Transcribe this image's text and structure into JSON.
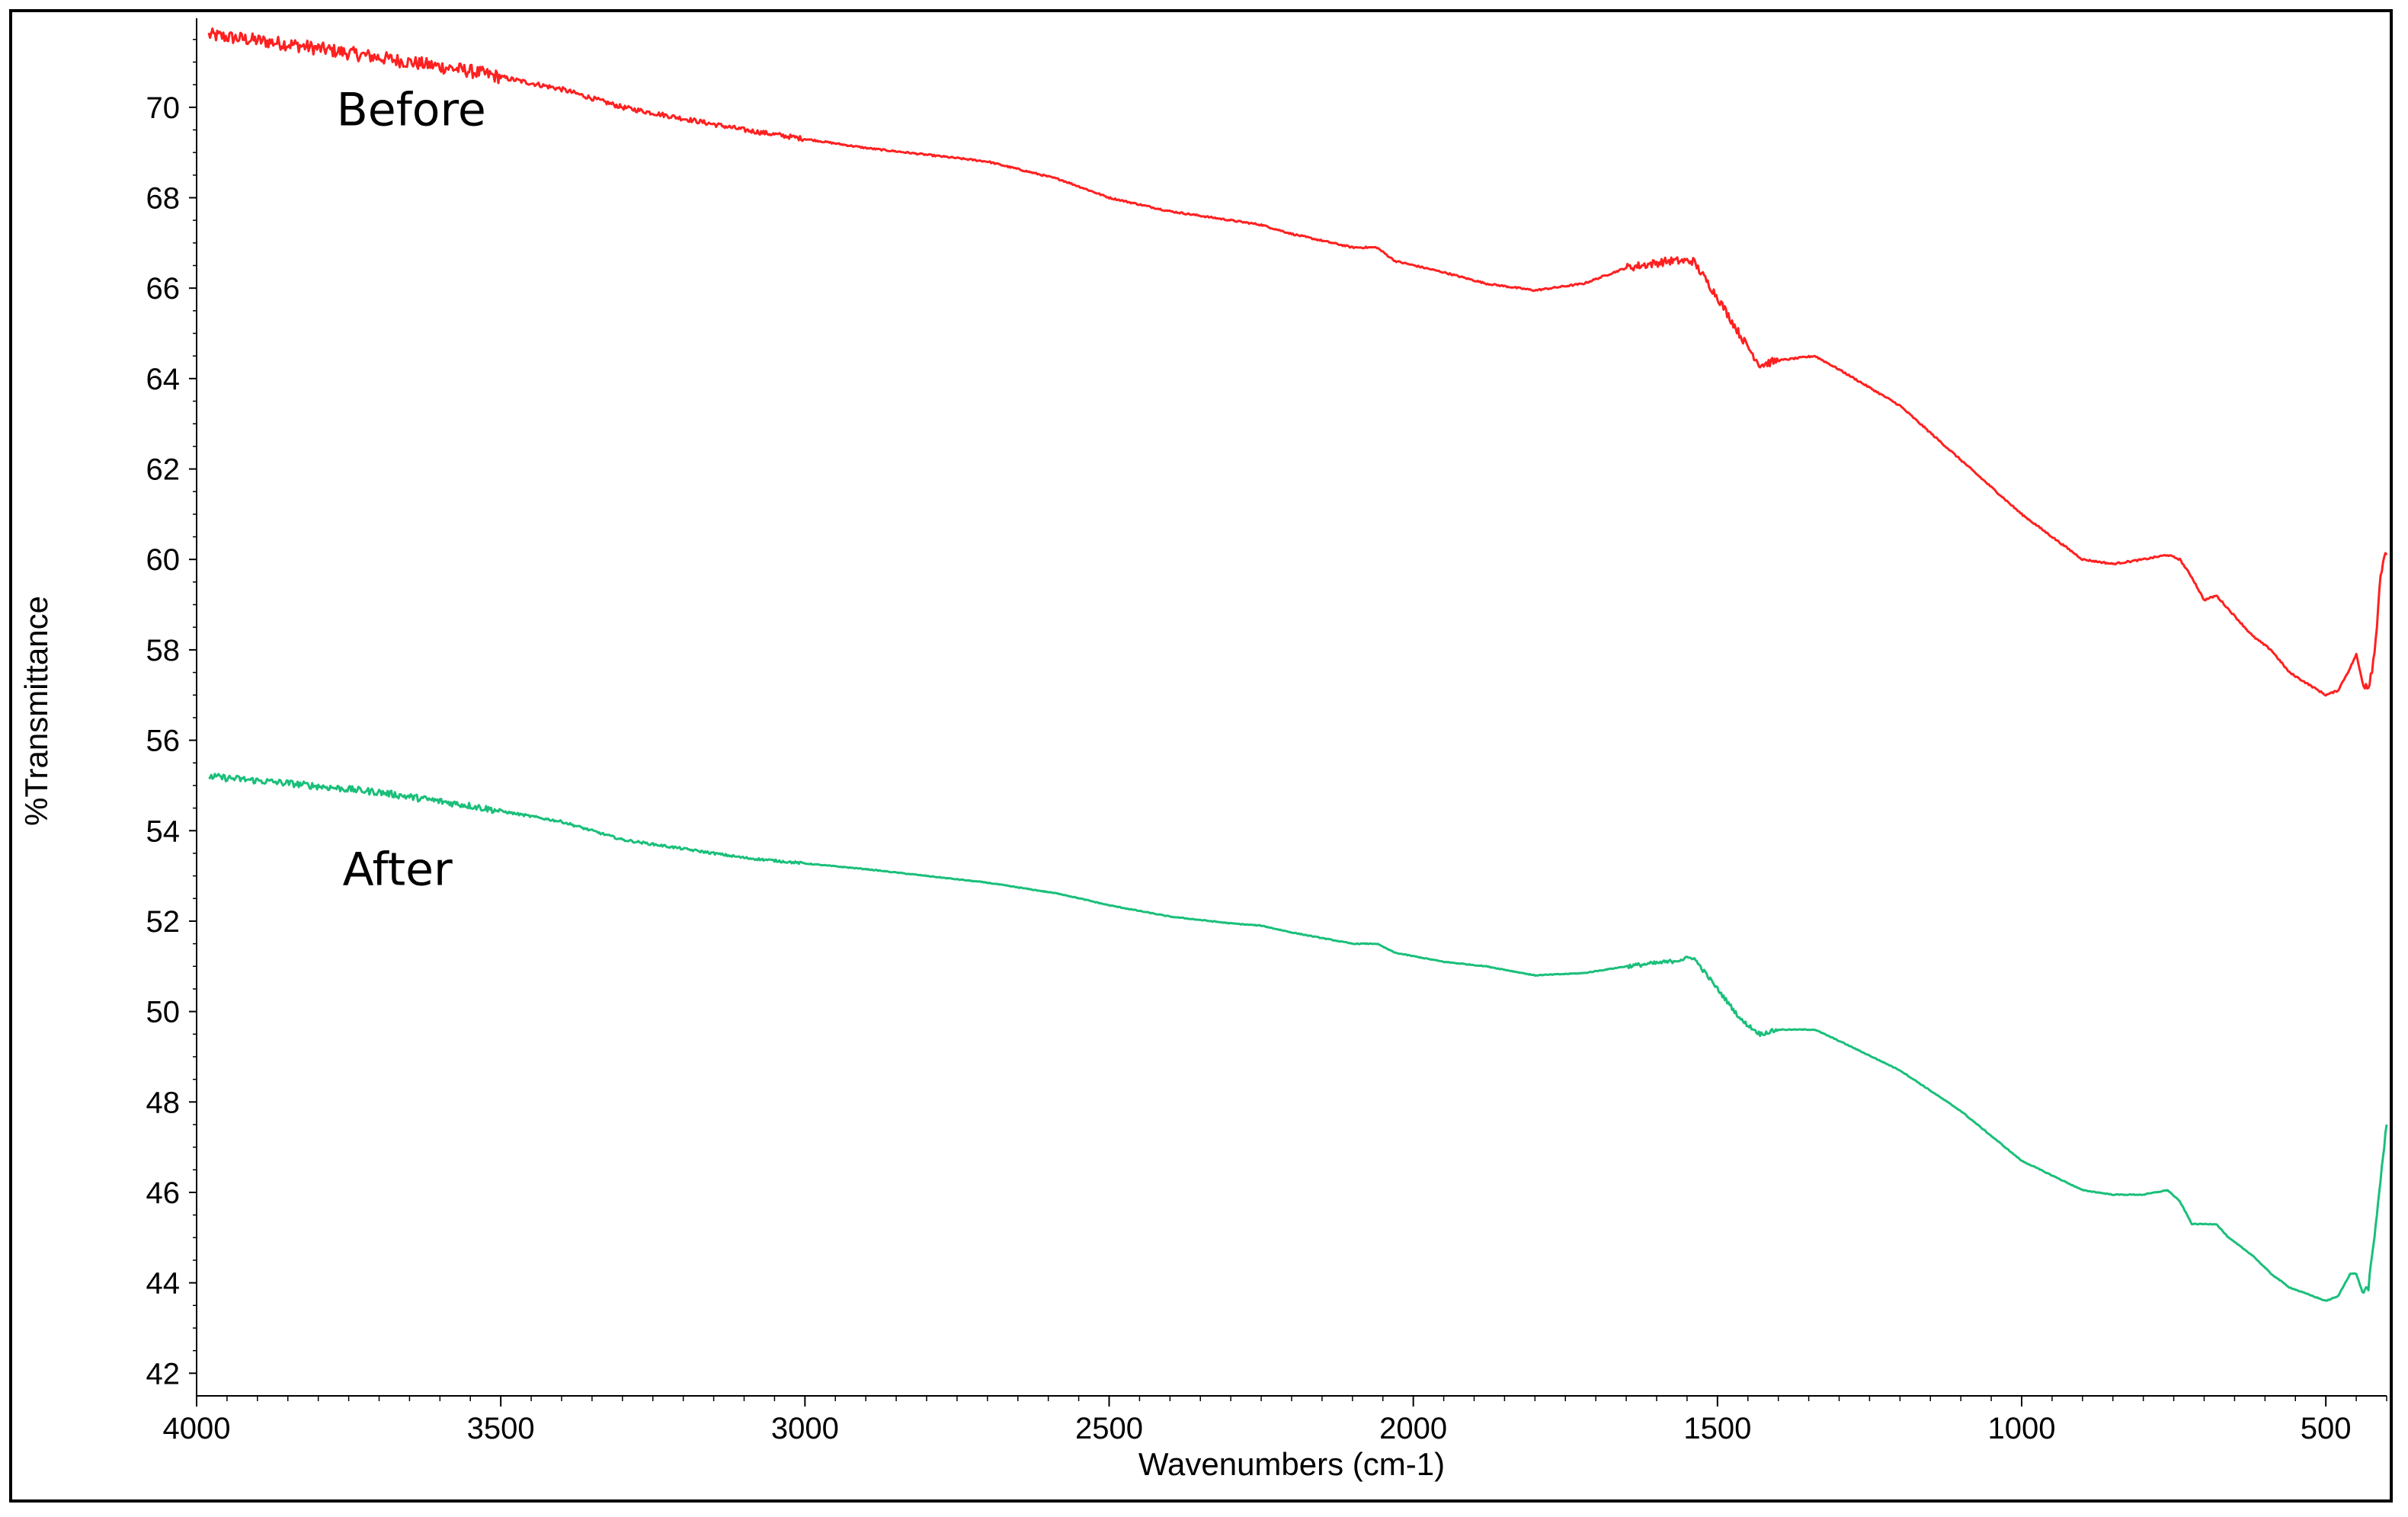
{
  "chart_data": {
    "type": "line",
    "title": "",
    "xlabel": "Wavenumbers (cm-1)",
    "ylabel": "%Transmittance",
    "xlim": [
      4000,
      400
    ],
    "ylim": [
      41.5,
      71.8
    ],
    "x_reversed": true,
    "grid": false,
    "x_ticks": [
      4000,
      3500,
      3000,
      2500,
      2000,
      1500,
      1000,
      500
    ],
    "y_ticks": [
      42,
      44,
      46,
      48,
      50,
      52,
      54,
      56,
      58,
      60,
      62,
      64,
      66,
      68,
      70
    ],
    "annotations": [
      {
        "text": "Before",
        "x": 3770,
        "y": 69.6
      },
      {
        "text": "After",
        "x": 3760,
        "y": 52.8
      }
    ],
    "series": [
      {
        "color": "#ff2020",
        "noise": 0.3,
        "points": [
          [
            3980,
            71.6
          ],
          [
            3850,
            71.4
          ],
          [
            3700,
            71.1
          ],
          [
            3550,
            70.8
          ],
          [
            3400,
            70.4
          ],
          [
            3300,
            70.0
          ],
          [
            3100,
            69.5
          ],
          [
            2900,
            69.1
          ],
          [
            2700,
            68.8
          ],
          [
            2580,
            68.4
          ],
          [
            2500,
            68.0
          ],
          [
            2400,
            67.7
          ],
          [
            2300,
            67.5
          ],
          [
            2250,
            67.4
          ],
          [
            2200,
            67.2
          ],
          [
            2100,
            66.9
          ],
          [
            2060,
            66.9
          ],
          [
            2030,
            66.6
          ],
          [
            1950,
            66.35
          ],
          [
            1880,
            66.1
          ],
          [
            1800,
            65.95
          ],
          [
            1720,
            66.1
          ],
          [
            1650,
            66.45
          ],
          [
            1580,
            66.6
          ],
          [
            1540,
            66.6
          ],
          [
            1500,
            65.8
          ],
          [
            1460,
            64.9
          ],
          [
            1430,
            64.3
          ],
          [
            1400,
            64.4
          ],
          [
            1340,
            64.5
          ],
          [
            1300,
            64.2
          ],
          [
            1200,
            63.4
          ],
          [
            1100,
            62.2
          ],
          [
            1000,
            61.0
          ],
          [
            900,
            60.0
          ],
          [
            850,
            59.9
          ],
          [
            800,
            60.0
          ],
          [
            760,
            60.1
          ],
          [
            740,
            60.0
          ],
          [
            720,
            59.6
          ],
          [
            700,
            59.1
          ],
          [
            680,
            59.2
          ],
          [
            660,
            58.9
          ],
          [
            620,
            58.3
          ],
          [
            590,
            58.0
          ],
          [
            560,
            57.5
          ],
          [
            500,
            57.0
          ],
          [
            480,
            57.1
          ],
          [
            460,
            57.6
          ],
          [
            450,
            57.9
          ],
          [
            440,
            57.3
          ],
          [
            430,
            57.2
          ],
          [
            420,
            57.9
          ],
          [
            410,
            59.7
          ],
          [
            400,
            60.1
          ]
        ]
      },
      {
        "color": "#1abf7a",
        "noise": 0.15,
        "points": [
          [
            3980,
            55.2
          ],
          [
            3850,
            55.05
          ],
          [
            3700,
            54.85
          ],
          [
            3550,
            54.55
          ],
          [
            3400,
            54.2
          ],
          [
            3300,
            53.8
          ],
          [
            3100,
            53.4
          ],
          [
            2900,
            53.15
          ],
          [
            2700,
            52.85
          ],
          [
            2580,
            52.6
          ],
          [
            2500,
            52.35
          ],
          [
            2400,
            52.1
          ],
          [
            2300,
            51.95
          ],
          [
            2250,
            51.9
          ],
          [
            2200,
            51.75
          ],
          [
            2100,
            51.5
          ],
          [
            2060,
            51.5
          ],
          [
            2030,
            51.3
          ],
          [
            1950,
            51.1
          ],
          [
            1880,
            51.0
          ],
          [
            1800,
            50.8
          ],
          [
            1720,
            50.85
          ],
          [
            1650,
            51.0
          ],
          [
            1580,
            51.1
          ],
          [
            1540,
            51.2
          ],
          [
            1500,
            50.5
          ],
          [
            1460,
            49.8
          ],
          [
            1430,
            49.5
          ],
          [
            1400,
            49.6
          ],
          [
            1340,
            49.6
          ],
          [
            1300,
            49.35
          ],
          [
            1200,
            48.7
          ],
          [
            1100,
            47.8
          ],
          [
            1000,
            46.7
          ],
          [
            900,
            46.05
          ],
          [
            850,
            45.95
          ],
          [
            800,
            45.95
          ],
          [
            760,
            46.05
          ],
          [
            740,
            45.8
          ],
          [
            720,
            45.3
          ],
          [
            700,
            45.3
          ],
          [
            680,
            45.3
          ],
          [
            660,
            45.0
          ],
          [
            620,
            44.6
          ],
          [
            590,
            44.2
          ],
          [
            560,
            43.9
          ],
          [
            500,
            43.6
          ],
          [
            480,
            43.7
          ],
          [
            460,
            44.2
          ],
          [
            450,
            44.2
          ],
          [
            440,
            43.8
          ],
          [
            430,
            43.9
          ],
          [
            420,
            45.0
          ],
          [
            410,
            46.3
          ],
          [
            400,
            47.5
          ]
        ]
      }
    ]
  }
}
